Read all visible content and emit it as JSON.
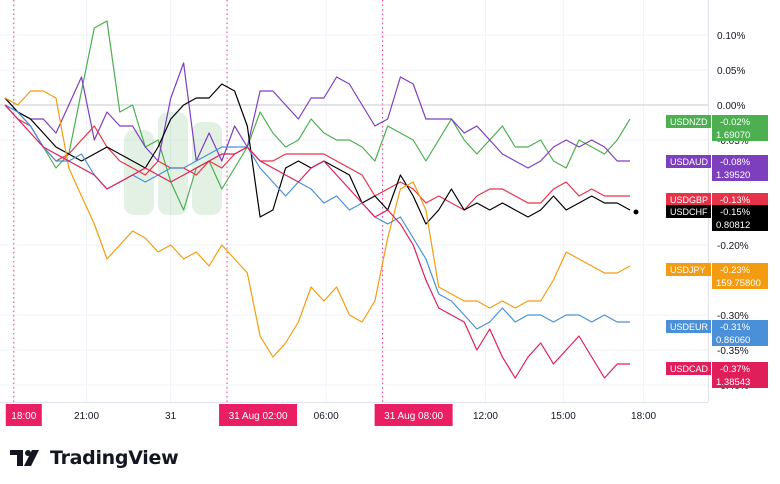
{
  "footer": {
    "brand": "TradingView",
    "logo_icon": "tradingview-logo-icon"
  },
  "watermark_icon": "forex-watermark-logo",
  "chart_data": {
    "type": "line",
    "xlabel": "",
    "ylabel": "",
    "grid": true,
    "x_tick_labels": [
      {
        "label": "18:00",
        "t": 0.7,
        "highlight": true
      },
      {
        "label": "21:00",
        "t": 6.5,
        "highlight": false
      },
      {
        "label": "31",
        "t": 13.2,
        "highlight": false
      },
      {
        "label": "31 Aug  02:00",
        "t": 17.7,
        "highlight": true
      },
      {
        "label": "06:00",
        "t": 25.6,
        "highlight": false
      },
      {
        "label": "31 Aug  08:00",
        "t": 30.1,
        "highlight": true
      },
      {
        "label": "12:00",
        "t": 38.3,
        "highlight": false
      },
      {
        "label": "15:00",
        "t": 44.5,
        "highlight": false
      },
      {
        "label": "18:00",
        "t": 50.9,
        "highlight": false
      }
    ],
    "session_lines": [
      0.7,
      17.7,
      30.1
    ],
    "y_tick_labels": [
      "0.10%",
      "0.05%",
      "0.00%",
      "-0.05%",
      "-0.20%",
      "-0.30%",
      "-0.35%",
      "-0.40%"
    ],
    "y_tick_values": [
      0.1,
      0.05,
      0.0,
      -0.05,
      -0.2,
      -0.3,
      -0.35,
      -0.4
    ],
    "ylim": [
      -0.425,
      0.14
    ],
    "x_range": [
      0,
      55
    ],
    "series": [
      {
        "name": "USDNZD",
        "color": "#4caf50",
        "pct_label": "-0.02%",
        "price_label": "1.69070",
        "last_pct": -0.02,
        "values": [
          0.0,
          -0.01,
          -0.03,
          -0.06,
          -0.09,
          -0.07,
          0.02,
          0.11,
          0.12,
          -0.01,
          0.0,
          -0.06,
          -0.05,
          -0.11,
          -0.15,
          -0.09,
          -0.08,
          -0.12,
          -0.09,
          -0.06,
          -0.01,
          -0.04,
          -0.06,
          -0.05,
          -0.02,
          -0.04,
          -0.05,
          -0.05,
          -0.06,
          -0.08,
          -0.03,
          -0.04,
          -0.05,
          -0.08,
          -0.05,
          -0.02,
          -0.05,
          -0.07,
          -0.05,
          -0.03,
          -0.06,
          -0.06,
          -0.05,
          -0.08,
          -0.09,
          -0.05,
          -0.06,
          -0.07,
          -0.05,
          -0.02
        ]
      },
      {
        "name": "USDAUD",
        "color": "#7e3fbf",
        "pct_label": "-0.08%",
        "price_label": "1.39520",
        "last_pct": -0.08,
        "values": [
          0.01,
          -0.01,
          -0.02,
          -0.02,
          -0.04,
          0.0,
          0.04,
          -0.05,
          -0.01,
          -0.03,
          -0.03,
          -0.06,
          -0.08,
          0.01,
          0.06,
          -0.08,
          -0.04,
          -0.08,
          -0.03,
          -0.06,
          0.02,
          0.02,
          0.0,
          -0.02,
          0.01,
          0.01,
          0.04,
          0.03,
          0.0,
          -0.03,
          -0.02,
          0.04,
          0.03,
          -0.02,
          -0.02,
          -0.02,
          -0.04,
          -0.03,
          -0.05,
          -0.07,
          -0.08,
          -0.09,
          -0.08,
          -0.06,
          -0.05,
          -0.06,
          -0.05,
          -0.06,
          -0.08,
          -0.08
        ]
      },
      {
        "name": "USDGBP",
        "color": "#e5334a",
        "pct_label": "-0.13%",
        "price_label": "",
        "last_pct": -0.13,
        "values": [
          0.0,
          -0.02,
          -0.03,
          -0.06,
          -0.08,
          -0.07,
          -0.05,
          -0.03,
          -0.06,
          -0.08,
          -0.09,
          -0.1,
          -0.08,
          -0.09,
          -0.09,
          -0.1,
          -0.08,
          -0.09,
          -0.07,
          -0.06,
          -0.08,
          -0.08,
          -0.07,
          -0.07,
          -0.07,
          -0.07,
          -0.08,
          -0.09,
          -0.1,
          -0.13,
          -0.12,
          -0.11,
          -0.12,
          -0.14,
          -0.13,
          -0.14,
          -0.15,
          -0.13,
          -0.12,
          -0.12,
          -0.13,
          -0.14,
          -0.14,
          -0.12,
          -0.11,
          -0.13,
          -0.12,
          -0.13,
          -0.13,
          -0.13
        ]
      },
      {
        "name": "USDCHF",
        "color": "#000000",
        "pct_label": "-0.15%",
        "price_label": "0.80812",
        "last_pct": -0.15,
        "values": [
          0.01,
          -0.01,
          -0.02,
          -0.04,
          -0.06,
          -0.07,
          -0.08,
          -0.07,
          -0.06,
          -0.07,
          -0.08,
          -0.09,
          -0.06,
          -0.02,
          0.0,
          0.01,
          0.01,
          0.03,
          0.02,
          -0.03,
          -0.16,
          -0.15,
          -0.09,
          -0.08,
          -0.09,
          -0.08,
          -0.09,
          -0.1,
          -0.14,
          -0.13,
          -0.15,
          -0.1,
          -0.13,
          -0.17,
          -0.15,
          -0.12,
          -0.15,
          -0.14,
          -0.15,
          -0.14,
          -0.15,
          -0.16,
          -0.15,
          -0.13,
          -0.15,
          -0.14,
          -0.13,
          -0.14,
          -0.14,
          -0.15
        ]
      },
      {
        "name": "USDJPY",
        "color": "#f39c12",
        "pct_label": "-0.23%",
        "price_label": "159.75800",
        "last_pct": -0.23,
        "values": [
          0.01,
          0.0,
          0.02,
          0.02,
          0.01,
          -0.09,
          -0.13,
          -0.17,
          -0.22,
          -0.2,
          -0.18,
          -0.19,
          -0.21,
          -0.2,
          -0.22,
          -0.21,
          -0.23,
          -0.2,
          -0.22,
          -0.24,
          -0.33,
          -0.36,
          -0.34,
          -0.31,
          -0.26,
          -0.28,
          -0.26,
          -0.3,
          -0.31,
          -0.28,
          -0.19,
          -0.12,
          -0.11,
          -0.15,
          -0.26,
          -0.27,
          -0.28,
          -0.28,
          -0.29,
          -0.28,
          -0.29,
          -0.28,
          -0.28,
          -0.25,
          -0.21,
          -0.22,
          -0.23,
          -0.24,
          -0.24,
          -0.23
        ]
      },
      {
        "name": "USDEUR",
        "color": "#4a90d9",
        "pct_label": "-0.31%",
        "price_label": "0.86060",
        "last_pct": -0.31,
        "values": [
          0.0,
          -0.01,
          -0.03,
          -0.06,
          -0.08,
          -0.08,
          -0.07,
          -0.1,
          -0.12,
          -0.11,
          -0.1,
          -0.11,
          -0.1,
          -0.09,
          -0.09,
          -0.08,
          -0.07,
          -0.06,
          -0.06,
          -0.06,
          -0.09,
          -0.11,
          -0.13,
          -0.11,
          -0.12,
          -0.14,
          -0.13,
          -0.15,
          -0.14,
          -0.16,
          -0.17,
          -0.16,
          -0.19,
          -0.22,
          -0.27,
          -0.28,
          -0.3,
          -0.32,
          -0.31,
          -0.29,
          -0.31,
          -0.3,
          -0.3,
          -0.31,
          -0.3,
          -0.3,
          -0.31,
          -0.3,
          -0.31,
          -0.31
        ]
      },
      {
        "name": "USDCAD",
        "color": "#e01e5a",
        "pct_label": "-0.37%",
        "price_label": "1.38543",
        "last_pct": -0.37,
        "values": [
          0.0,
          -0.02,
          -0.04,
          -0.06,
          -0.07,
          -0.08,
          -0.09,
          -0.1,
          -0.12,
          -0.11,
          -0.1,
          -0.09,
          -0.1,
          -0.11,
          -0.1,
          -0.09,
          -0.08,
          -0.07,
          -0.07,
          -0.06,
          -0.08,
          -0.09,
          -0.1,
          -0.11,
          -0.09,
          -0.08,
          -0.1,
          -0.12,
          -0.14,
          -0.16,
          -0.15,
          -0.17,
          -0.2,
          -0.25,
          -0.29,
          -0.3,
          -0.31,
          -0.35,
          -0.32,
          -0.36,
          -0.39,
          -0.36,
          -0.34,
          -0.37,
          -0.35,
          -0.33,
          -0.36,
          -0.39,
          -0.37,
          -0.37
        ]
      }
    ]
  }
}
